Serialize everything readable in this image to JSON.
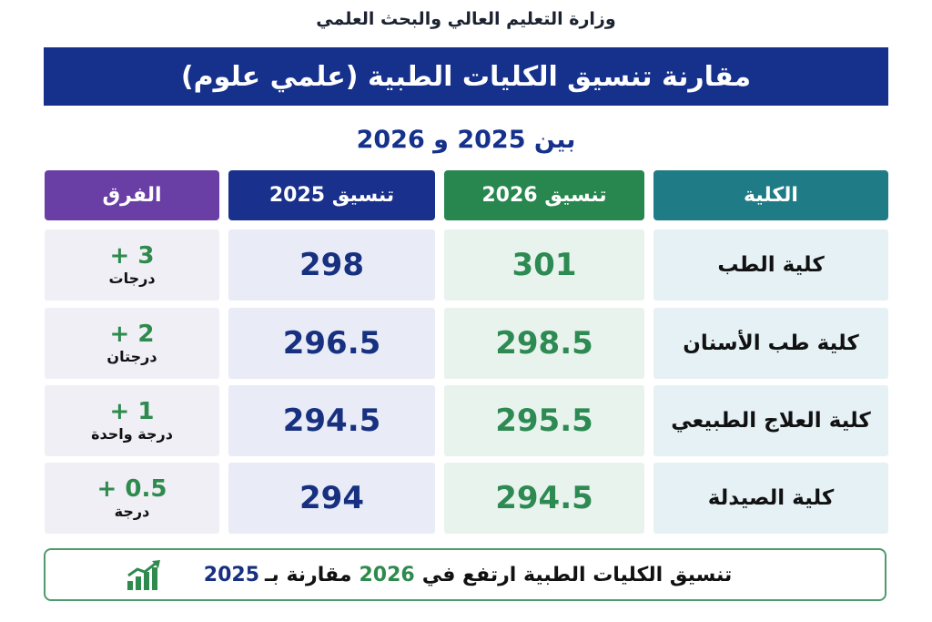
{
  "ministry": "وزارة التعليم العالي والبحث العلمي",
  "title": "مقارنة تنسيق الكليات الطبية (علمي علوم)",
  "subtitle": "بين 2025 و 2026",
  "headers": {
    "college": "الكلية",
    "y2026": "تنسيق 2026",
    "y2025": "تنسيق 2025",
    "diff": "الفرق"
  },
  "rows": [
    {
      "college": "كلية الطب",
      "y2026": "301",
      "y2025": "298",
      "diff": "+ 3",
      "diff_unit": "درجات"
    },
    {
      "college": "كلية طب الأسنان",
      "y2026": "298.5",
      "y2025": "296.5",
      "diff": "+ 2",
      "diff_unit": "درجتان"
    },
    {
      "college": "كلية العلاج الطبيعي",
      "y2026": "295.5",
      "y2025": "294.5",
      "diff": "+ 1",
      "diff_unit": "درجة واحدة"
    },
    {
      "college": "كلية الصيدلة",
      "y2026": "294.5",
      "y2025": "294",
      "diff": "+ 0.5",
      "diff_unit": "درجة"
    }
  ],
  "footer": {
    "text_start": "تنسيق الكليات الطبية ارتفع في",
    "year_new": "2026",
    "text_mid": "مقارنة بـ",
    "year_old": "2025",
    "icon": "trend-up-chart-icon"
  },
  "colors": {
    "title_bg": "#15318c",
    "college_header": "#1f7b86",
    "y2026_header": "#27874f",
    "y2025_header": "#19308c",
    "diff_header": "#6a3fa5"
  }
}
